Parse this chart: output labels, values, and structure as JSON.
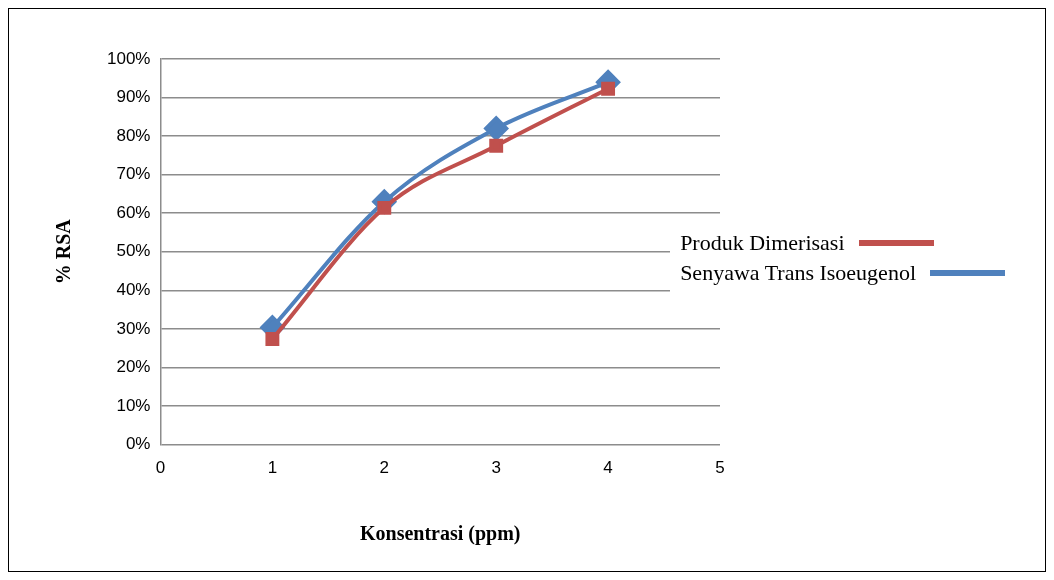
{
  "chart_data": {
    "type": "line",
    "xlabel": "Konsentrasi (ppm)",
    "ylabel": "% RSA",
    "x": [
      1,
      2,
      3,
      4
    ],
    "series": [
      {
        "name": "Produk Dimerisasi",
        "color": "#c0504d",
        "marker": "square",
        "values": [
          27.4,
          61.4,
          77.5,
          92.3
        ]
      },
      {
        "name": "Senyawa Trans Isoeugenol",
        "color": "#4f81bd",
        "marker": "diamond",
        "values": [
          30.4,
          63,
          82,
          94
        ]
      }
    ],
    "xlim": [
      0,
      5
    ],
    "xticks": [
      0,
      1,
      2,
      3,
      4,
      5
    ],
    "ylim": [
      0,
      100
    ],
    "yticks": [
      {
        "value": 0,
        "label": "0%"
      },
      {
        "value": 10,
        "label": "10%"
      },
      {
        "value": 20,
        "label": "20%"
      },
      {
        "value": 30,
        "label": "30%"
      },
      {
        "value": 40,
        "label": "40%"
      },
      {
        "value": 50,
        "label": "50%"
      },
      {
        "value": 60,
        "label": "60%"
      },
      {
        "value": 70,
        "label": "70%"
      },
      {
        "value": 80,
        "label": "80%"
      },
      {
        "value": 90,
        "label": "90%"
      },
      {
        "value": 100,
        "label": "100%"
      }
    ],
    "grid": "y",
    "legend": "right"
  }
}
